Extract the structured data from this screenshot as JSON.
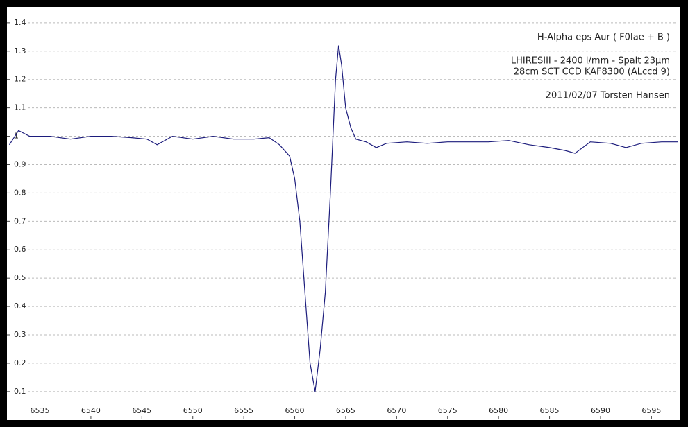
{
  "chart_data": {
    "type": "line",
    "annotations": [
      "H-Alpha eps Aur ( F0Iae + B )",
      "LHIRESIII - 2400 l/mm - Spalt 23µm",
      "28cm SCT   CCD KAF8300 (ALccd 9)",
      "2011/02/07   Torsten Hansen"
    ],
    "x": [
      6532,
      6532.9,
      6534,
      6536,
      6538,
      6540,
      6542,
      6544,
      6545.5,
      6546.5,
      6548,
      6550,
      6552,
      6554,
      6556,
      6557.5,
      6558.5,
      6559.5,
      6560,
      6560.5,
      6561,
      6561.5,
      6562,
      6562.5,
      6563,
      6563.5,
      6564,
      6564.3,
      6564.6,
      6565,
      6565.5,
      6566,
      6567,
      6568,
      6569,
      6571,
      6573,
      6575,
      6577,
      6579,
      6581,
      6583,
      6585,
      6586.5,
      6587.5,
      6589,
      6591,
      6592.5,
      6594,
      6596,
      6597.6
    ],
    "values": [
      0.97,
      1.02,
      1.0,
      1.0,
      0.99,
      1.0,
      1.0,
      0.995,
      0.99,
      0.97,
      1.0,
      0.99,
      1.0,
      0.99,
      0.99,
      0.995,
      0.97,
      0.93,
      0.85,
      0.7,
      0.45,
      0.2,
      0.1,
      0.25,
      0.45,
      0.8,
      1.2,
      1.32,
      1.25,
      1.1,
      1.03,
      0.99,
      0.98,
      0.96,
      0.975,
      0.98,
      0.975,
      0.98,
      0.98,
      0.98,
      0.985,
      0.97,
      0.96,
      0.95,
      0.94,
      0.98,
      0.975,
      0.96,
      0.975,
      0.98,
      0.98
    ],
    "color": "#1c1c7c",
    "xlim": [
      6531.9,
      6597.7
    ],
    "xticks": [
      6535,
      6540,
      6545,
      6550,
      6555,
      6560,
      6565,
      6570,
      6575,
      6580,
      6585,
      6590,
      6595
    ],
    "ylim": [
      0.063,
      1.451
    ],
    "yticks": [
      0.1,
      0.2,
      0.3,
      0.4,
      0.5,
      0.6,
      0.7,
      0.8,
      0.9,
      1,
      1.1,
      1.2,
      1.3,
      1.4
    ],
    "grid": true
  }
}
